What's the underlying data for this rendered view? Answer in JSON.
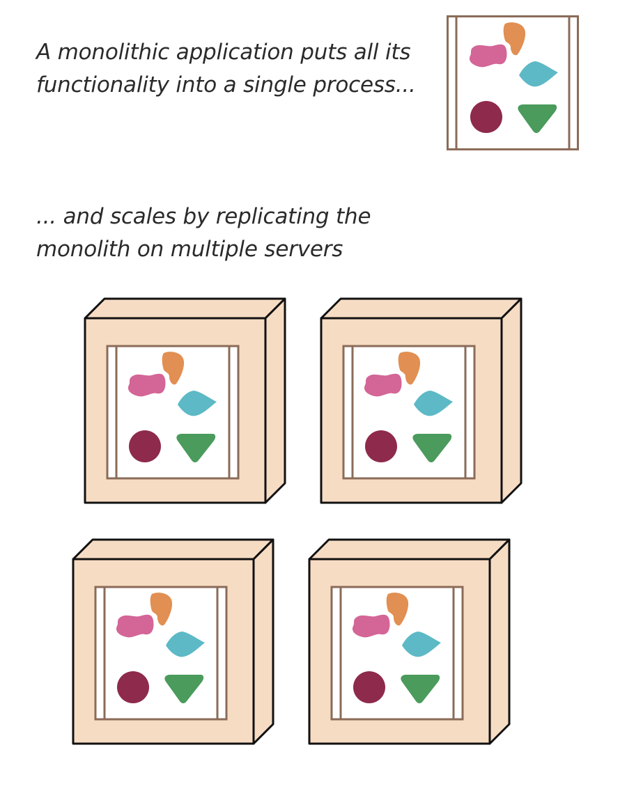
{
  "captions": {
    "top_line1": "A monolithic application puts all its",
    "top_line2": "functionality into a single process...",
    "bottom_line1": "... and scales by replicating the",
    "bottom_line2": "monolith on multiple servers"
  },
  "colors": {
    "frame": "#8b6b58",
    "server_fill": "#f7dcc4",
    "outline": "#111111",
    "pink_blob": "#d36597",
    "orange_blob": "#e18f52",
    "teal_diamond": "#5db9c6",
    "maroon_circle": "#8e2a4b",
    "green_triangle": "#4a9b5c"
  },
  "server_count": 4
}
